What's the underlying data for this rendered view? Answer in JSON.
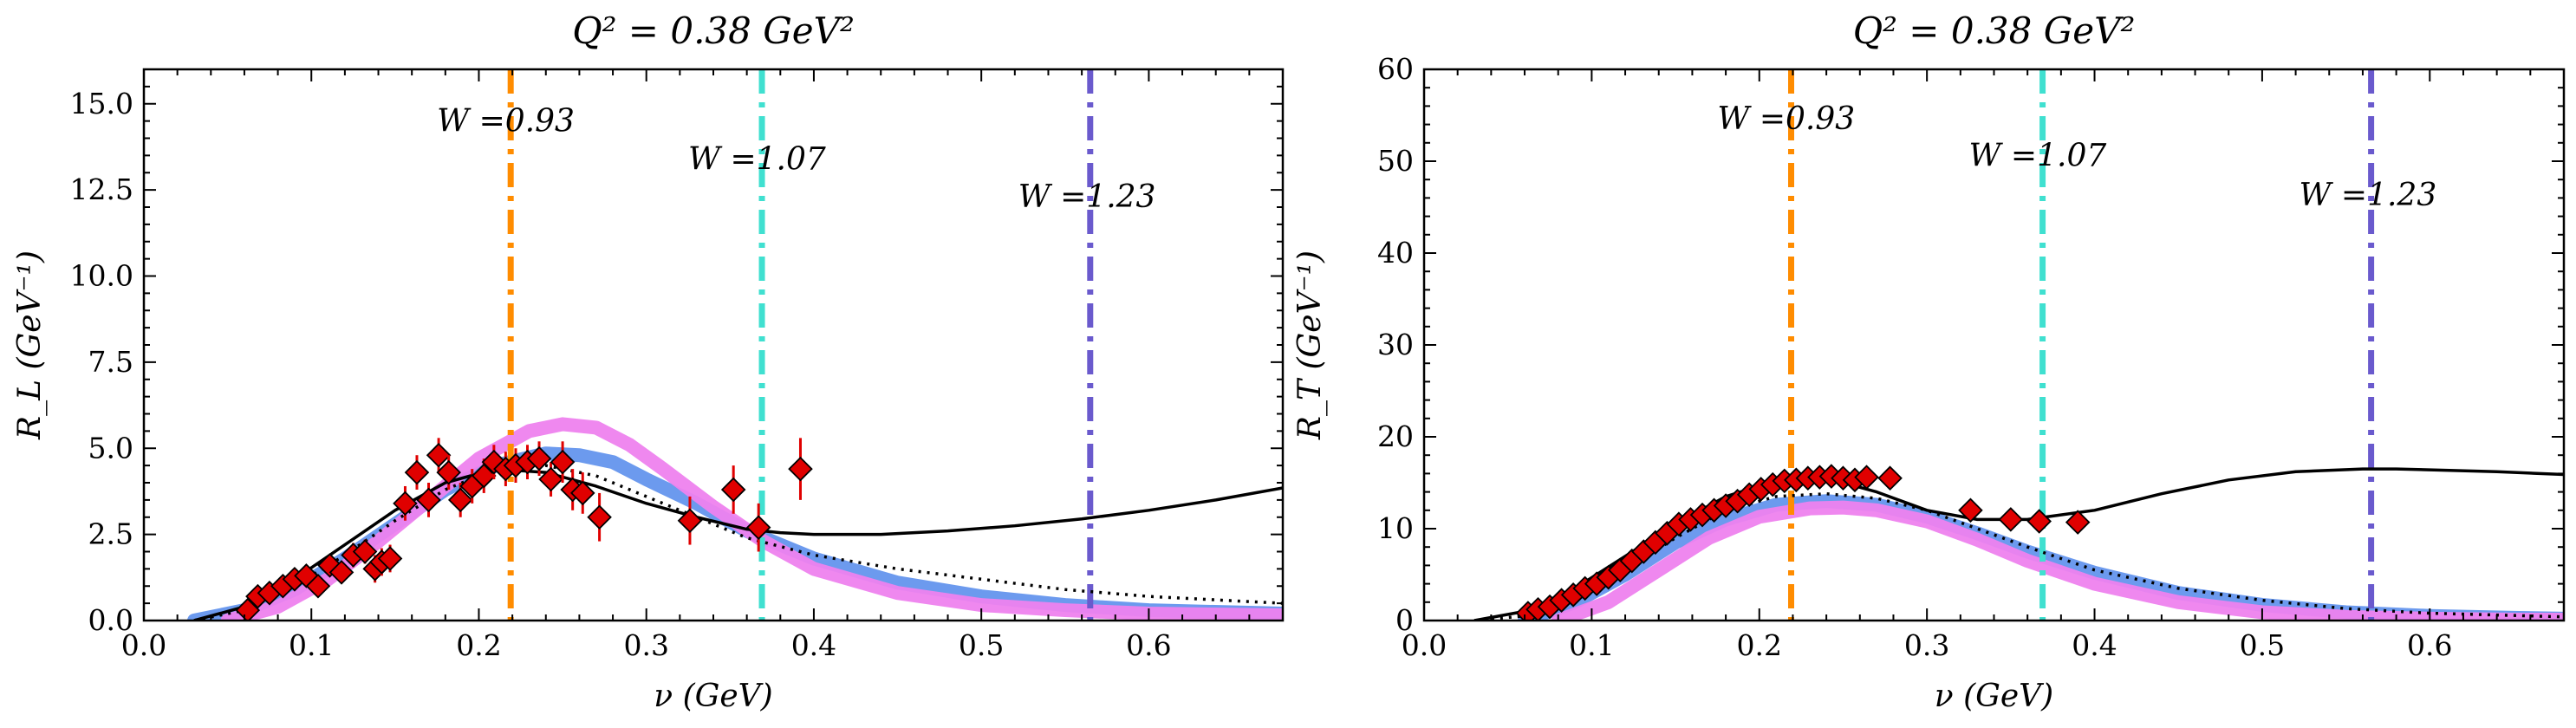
{
  "chart_data": [
    {
      "type": "line",
      "title": "Q² = 0.38 GeV²",
      "xlabel": "ν (GeV)",
      "ylabel": "R_L (GeV⁻¹)",
      "xlim": [
        0.0,
        0.68
      ],
      "ylim": [
        0.0,
        16.0
      ],
      "xticks": [
        "0.0",
        "0.1",
        "0.2",
        "0.3",
        "0.4",
        "0.5",
        "0.6"
      ],
      "xtick_values": [
        0.0,
        0.1,
        0.2,
        0.3,
        0.4,
        0.5,
        0.6
      ],
      "yticks": [
        "0.0",
        "2.5",
        "5.0",
        "7.5",
        "10.0",
        "12.5",
        "15.0"
      ],
      "ytick_values": [
        0.0,
        2.5,
        5.0,
        7.5,
        10.0,
        12.5,
        15.0
      ],
      "vlines": [
        {
          "x": 0.219,
          "label": "W =0.93",
          "label_y": 14.2,
          "label_x": 0.175,
          "color": "#ff8c00"
        },
        {
          "x": 0.369,
          "label": "W =1.07",
          "label_y": 13.1,
          "label_x": 0.325,
          "color": "#40e0d0"
        },
        {
          "x": 0.565,
          "label": "W =1.23",
          "label_y": 12.0,
          "label_x": 0.522,
          "color": "#6a5acd"
        }
      ],
      "series": [
        {
          "style": "band",
          "color": "#6495ed",
          "x": [
            0.03,
            0.06,
            0.09,
            0.12,
            0.15,
            0.18,
            0.21,
            0.24,
            0.26,
            0.28,
            0.3,
            0.33,
            0.36,
            0.4,
            0.45,
            0.5,
            0.55,
            0.6,
            0.68
          ],
          "y": [
            0.0,
            0.3,
            0.9,
            1.8,
            2.8,
            3.8,
            4.5,
            4.85,
            4.8,
            4.6,
            4.1,
            3.4,
            2.6,
            1.8,
            1.1,
            0.7,
            0.45,
            0.3,
            0.2
          ]
        },
        {
          "style": "band",
          "color": "#ee82ee",
          "x": [
            0.05,
            0.08,
            0.11,
            0.14,
            0.17,
            0.2,
            0.23,
            0.25,
            0.27,
            0.29,
            0.31,
            0.34,
            0.37,
            0.4,
            0.45,
            0.5,
            0.55,
            0.6,
            0.68
          ],
          "y": [
            0.0,
            0.4,
            1.2,
            2.3,
            3.5,
            4.7,
            5.5,
            5.7,
            5.6,
            5.1,
            4.4,
            3.3,
            2.3,
            1.5,
            0.8,
            0.45,
            0.3,
            0.2,
            0.15
          ]
        },
        {
          "style": "dotted",
          "color": "#000000",
          "x": [
            0.03,
            0.06,
            0.09,
            0.12,
            0.15,
            0.18,
            0.21,
            0.24,
            0.27,
            0.3,
            0.33,
            0.36,
            0.4,
            0.45,
            0.5,
            0.55,
            0.6,
            0.68
          ],
          "y": [
            0.0,
            0.3,
            1.0,
            1.9,
            2.9,
            3.8,
            4.4,
            4.5,
            4.2,
            3.6,
            3.0,
            2.4,
            1.9,
            1.5,
            1.2,
            0.9,
            0.7,
            0.5
          ]
        },
        {
          "style": "solid",
          "color": "#000000",
          "x": [
            0.03,
            0.06,
            0.09,
            0.12,
            0.15,
            0.18,
            0.21,
            0.24,
            0.27,
            0.3,
            0.33,
            0.36,
            0.38,
            0.4,
            0.42,
            0.44,
            0.48,
            0.52,
            0.56,
            0.6,
            0.64,
            0.68
          ],
          "y": [
            0.0,
            0.4,
            1.2,
            2.2,
            3.2,
            4.0,
            4.4,
            4.3,
            3.9,
            3.4,
            3.0,
            2.65,
            2.55,
            2.5,
            2.5,
            2.5,
            2.6,
            2.75,
            2.95,
            3.2,
            3.5,
            3.85
          ]
        },
        {
          "style": "markers",
          "color": "#e00000",
          "x": [
            0.062,
            0.068,
            0.075,
            0.083,
            0.09,
            0.097,
            0.104,
            0.111,
            0.118,
            0.125,
            0.132,
            0.138,
            0.142,
            0.147,
            0.156,
            0.163,
            0.17,
            0.176,
            0.182,
            0.189,
            0.196,
            0.203,
            0.209,
            0.216,
            0.222,
            0.229,
            0.236,
            0.243,
            0.25,
            0.256,
            0.262,
            0.272,
            0.326,
            0.352,
            0.367,
            0.392
          ],
          "y": [
            0.3,
            0.7,
            0.8,
            1.0,
            1.2,
            1.3,
            1.0,
            1.6,
            1.4,
            1.9,
            2.0,
            1.5,
            1.7,
            1.8,
            3.4,
            4.3,
            3.5,
            4.8,
            4.3,
            3.5,
            3.9,
            4.2,
            4.6,
            4.4,
            4.5,
            4.6,
            4.7,
            4.1,
            4.6,
            3.8,
            3.7,
            3.0,
            2.9,
            3.8,
            2.7,
            4.4
          ],
          "err": [
            0.3,
            0.3,
            0.3,
            0.3,
            0.3,
            0.3,
            0.3,
            0.3,
            0.3,
            0.35,
            0.35,
            0.4,
            0.4,
            0.4,
            0.5,
            0.5,
            0.5,
            0.5,
            0.5,
            0.5,
            0.5,
            0.5,
            0.5,
            0.5,
            0.5,
            0.5,
            0.5,
            0.5,
            0.6,
            0.6,
            0.6,
            0.7,
            0.7,
            0.7,
            0.7,
            0.9
          ]
        }
      ]
    },
    {
      "type": "line",
      "title": "Q² = 0.38 GeV²",
      "xlabel": "ν (GeV)",
      "ylabel": "R_T (GeV⁻¹)",
      "xlim": [
        0.0,
        0.68
      ],
      "ylim": [
        0.0,
        60.0
      ],
      "xticks": [
        "0.0",
        "0.1",
        "0.2",
        "0.3",
        "0.4",
        "0.5",
        "0.6"
      ],
      "xtick_values": [
        0.0,
        0.1,
        0.2,
        0.3,
        0.4,
        0.5,
        0.6
      ],
      "yticks": [
        "0",
        "10",
        "20",
        "30",
        "40",
        "50",
        "60"
      ],
      "ytick_values": [
        0,
        10,
        20,
        30,
        40,
        50,
        60
      ],
      "vlines": [
        {
          "x": 0.219,
          "label": "W =0.93",
          "label_y": 53.5,
          "label_x": 0.175,
          "color": "#ff8c00"
        },
        {
          "x": 0.369,
          "label": "W =1.07",
          "label_y": 49.5,
          "label_x": 0.325,
          "color": "#40e0d0"
        },
        {
          "x": 0.565,
          "label": "W =1.23",
          "label_y": 45.2,
          "label_x": 0.522,
          "color": "#6a5acd"
        }
      ],
      "series": [
        {
          "style": "band",
          "color": "#6495ed",
          "x": [
            0.06,
            0.09,
            0.12,
            0.15,
            0.18,
            0.21,
            0.24,
            0.27,
            0.3,
            0.33,
            0.36,
            0.4,
            0.45,
            0.5,
            0.55,
            0.6,
            0.65,
            0.68
          ],
          "y": [
            0.0,
            2.0,
            5.0,
            8.5,
            11.0,
            12.6,
            13.0,
            12.6,
            11.3,
            9.5,
            7.5,
            5.2,
            3.0,
            1.7,
            0.9,
            0.5,
            0.3,
            0.2
          ]
        },
        {
          "style": "band",
          "color": "#ee82ee",
          "x": [
            0.08,
            0.11,
            0.14,
            0.17,
            0.2,
            0.23,
            0.25,
            0.27,
            0.3,
            0.33,
            0.36,
            0.4,
            0.45,
            0.5,
            0.55,
            0.6,
            0.65,
            0.68
          ],
          "y": [
            0.0,
            2.0,
            5.5,
            9.0,
            11.3,
            12.2,
            12.3,
            12.0,
            10.8,
            8.8,
            6.5,
            4.0,
            2.0,
            0.9,
            0.4,
            0.2,
            0.1,
            0.1
          ]
        },
        {
          "style": "dotted",
          "color": "#000000",
          "x": [
            0.03,
            0.06,
            0.09,
            0.12,
            0.15,
            0.18,
            0.21,
            0.24,
            0.27,
            0.3,
            0.33,
            0.36,
            0.4,
            0.45,
            0.5,
            0.55,
            0.6,
            0.68
          ],
          "y": [
            0.0,
            0.5,
            2.5,
            5.5,
            9.0,
            12.0,
            13.5,
            13.8,
            13.3,
            12.0,
            10.0,
            8.0,
            5.5,
            3.5,
            2.2,
            1.3,
            0.8,
            0.4
          ]
        },
        {
          "style": "solid",
          "color": "#000000",
          "x": [
            0.03,
            0.06,
            0.09,
            0.12,
            0.15,
            0.18,
            0.21,
            0.24,
            0.27,
            0.3,
            0.33,
            0.36,
            0.4,
            0.44,
            0.48,
            0.52,
            0.56,
            0.58,
            0.6,
            0.64,
            0.68
          ],
          "y": [
            0.0,
            1.0,
            3.5,
            7.0,
            10.5,
            13.5,
            15.2,
            15.5,
            14.0,
            12.0,
            11.0,
            11.0,
            12.0,
            13.8,
            15.3,
            16.2,
            16.5,
            16.5,
            16.4,
            16.2,
            15.9
          ]
        },
        {
          "style": "markers",
          "color": "#e00000",
          "x": [
            0.062,
            0.068,
            0.075,
            0.082,
            0.089,
            0.096,
            0.103,
            0.11,
            0.117,
            0.124,
            0.131,
            0.138,
            0.145,
            0.152,
            0.159,
            0.166,
            0.173,
            0.18,
            0.187,
            0.194,
            0.201,
            0.208,
            0.215,
            0.222,
            0.229,
            0.236,
            0.243,
            0.25,
            0.257,
            0.264,
            0.278,
            0.326,
            0.35,
            0.367,
            0.39
          ],
          "y": [
            0.8,
            1.2,
            1.5,
            2.2,
            2.8,
            3.5,
            4.0,
            4.7,
            5.5,
            6.5,
            7.5,
            8.5,
            9.5,
            10.5,
            11.0,
            11.5,
            12.0,
            12.5,
            13.0,
            13.7,
            14.3,
            14.8,
            15.2,
            15.3,
            15.5,
            15.6,
            15.7,
            15.5,
            15.3,
            15.6,
            15.5,
            12.0,
            11.0,
            10.8,
            10.7
          ],
          "err": [
            0.3,
            0.3,
            0.3,
            0.3,
            0.3,
            0.3,
            0.3,
            0.3,
            0.3,
            0.3,
            0.3,
            0.3,
            0.3,
            0.3,
            0.3,
            0.3,
            0.3,
            0.3,
            0.3,
            0.3,
            0.3,
            0.3,
            0.3,
            0.3,
            0.3,
            0.3,
            0.3,
            0.3,
            0.3,
            0.3,
            0.3,
            0.3,
            0.3,
            0.3,
            0.3
          ]
        }
      ]
    }
  ]
}
